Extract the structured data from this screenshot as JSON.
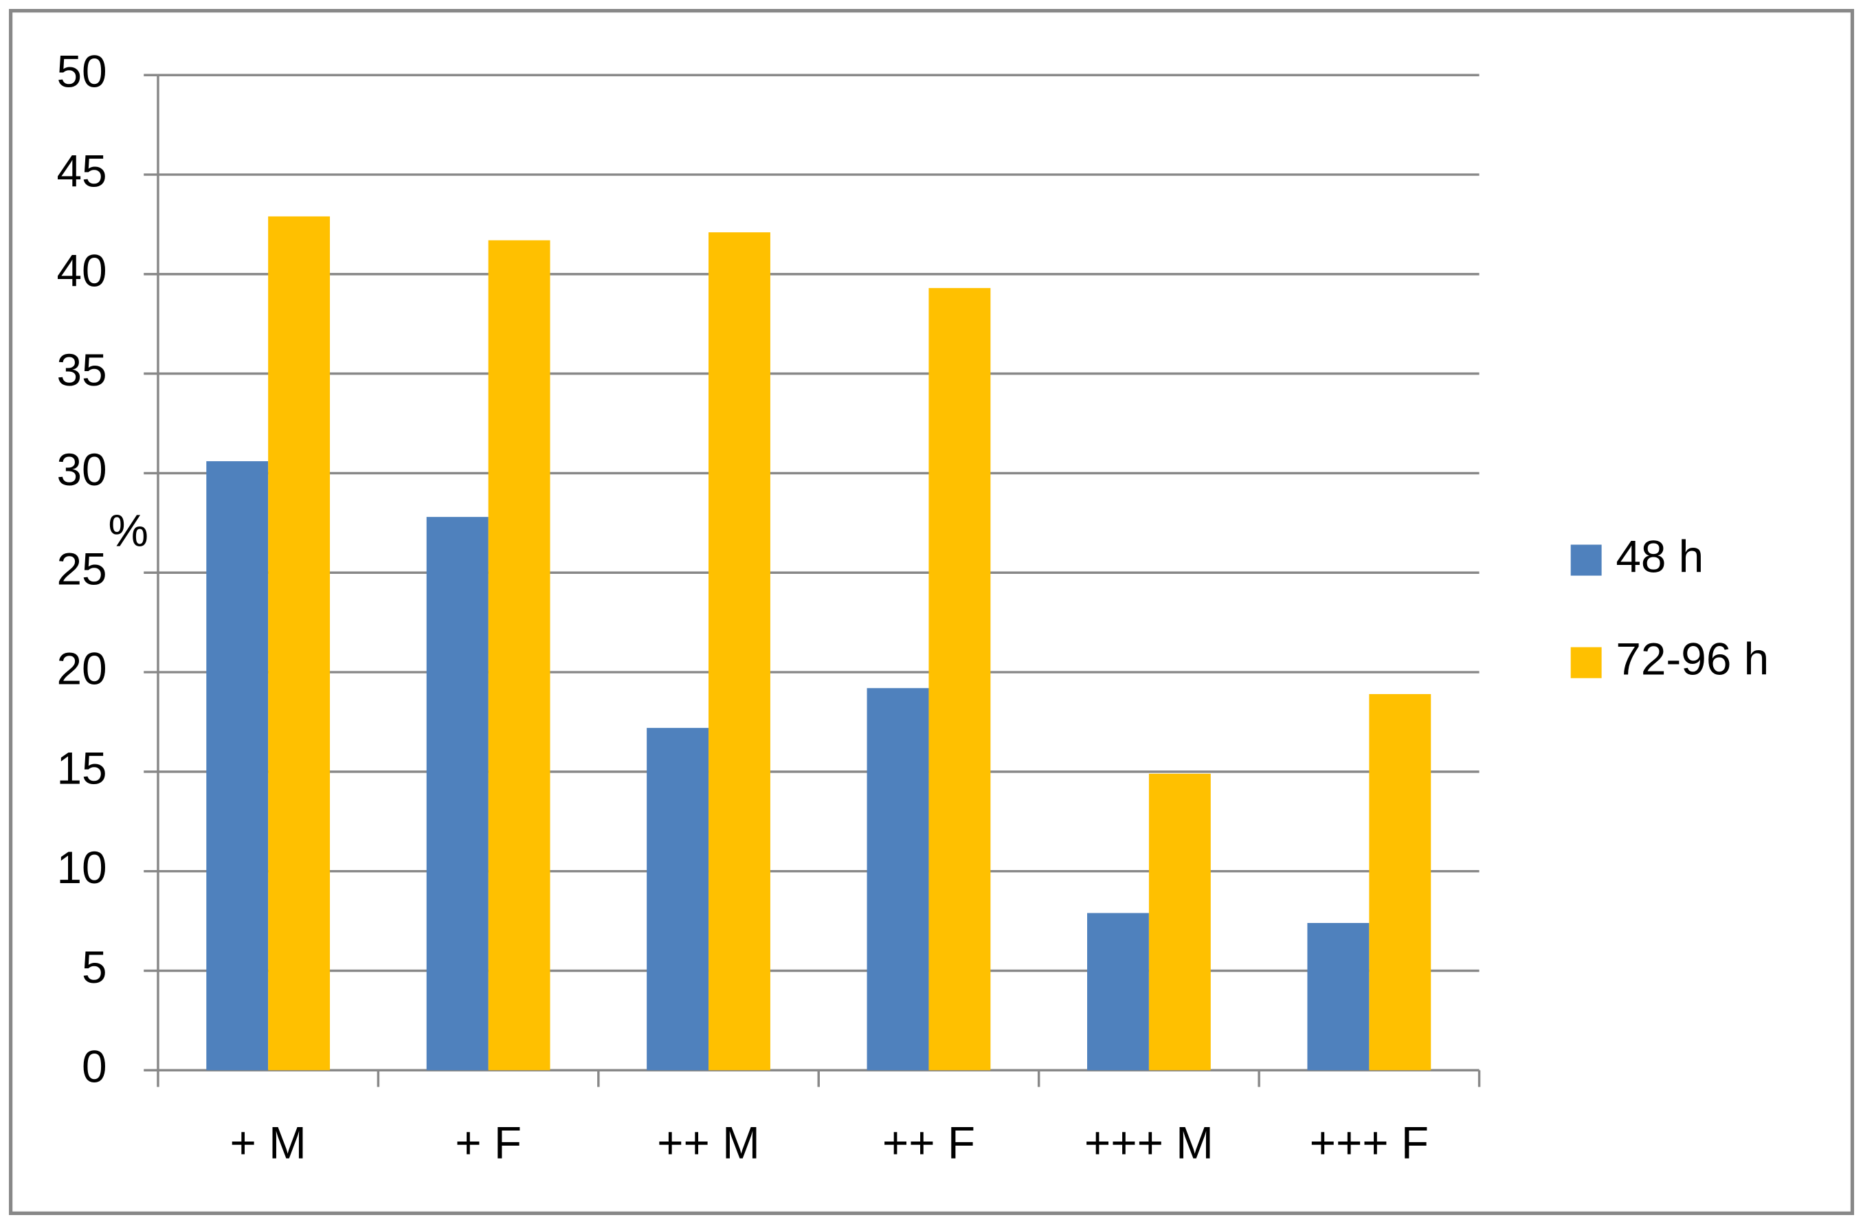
{
  "chart_data": {
    "type": "bar",
    "y_label": "%",
    "categories": [
      "+ M",
      "+ F",
      "++ M",
      "++ F",
      "+++ M",
      "+++ F"
    ],
    "series": [
      {
        "name": "48 h",
        "color": "#4f81bd",
        "values": [
          30.6,
          27.8,
          17.2,
          19.2,
          7.9,
          7.4
        ]
      },
      {
        "name": "72-96 h",
        "color": "#ffc000",
        "values": [
          42.9,
          41.7,
          42.1,
          39.3,
          14.9,
          18.9
        ]
      }
    ],
    "ylim": [
      0,
      50
    ],
    "yticks": [
      0,
      5,
      10,
      15,
      20,
      25,
      30,
      35,
      40,
      45,
      50
    ],
    "grid": true,
    "legend": "right"
  }
}
